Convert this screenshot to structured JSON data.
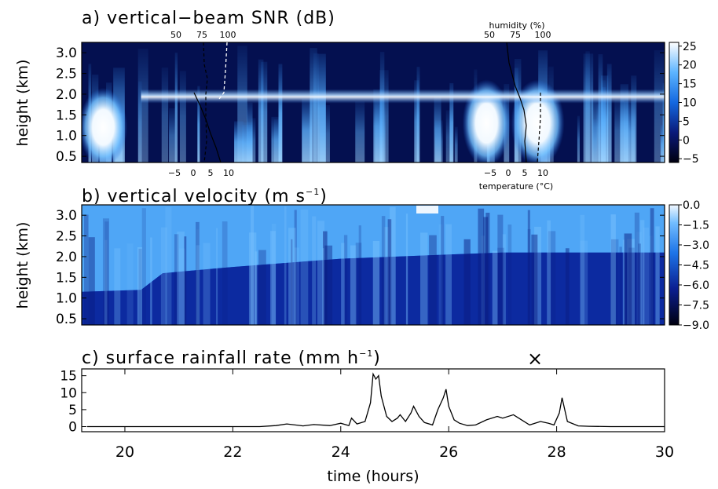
{
  "chart_data": [
    {
      "panel": "a",
      "type": "heatmap",
      "title": "a) vertical−beam SNR (dB)",
      "ylabel": "height (km)",
      "ylim": [
        0.35,
        3.25
      ],
      "yticks": [
        "0.5",
        "1.0",
        "1.5",
        "2.0",
        "2.5",
        "3.0"
      ],
      "xlim": [
        19.2,
        30.0
      ],
      "colorbar": {
        "min": -6,
        "max": 26,
        "ticks": [
          "25",
          "20",
          "15",
          "10",
          "5",
          "0",
          "−5"
        ],
        "tick_values": [
          25,
          20,
          15,
          10,
          5,
          0,
          -5
        ]
      },
      "bright_layers": [
        {
          "t0": 19.3,
          "t1": 19.9,
          "h0": 0.4,
          "h1": 2.0,
          "value": 25
        },
        {
          "t0": 26.4,
          "t1": 27.0,
          "h0": 0.4,
          "h1": 2.2,
          "value": 25
        },
        {
          "t0": 27.3,
          "t1": 28.0,
          "h0": 0.4,
          "h1": 2.2,
          "value": 25
        }
      ],
      "bright_band": {
        "height": 1.95,
        "t0": 20.3,
        "t1": 30.0,
        "value": 15
      },
      "soundings": [
        {
          "humidity_label": "",
          "humidity_ticks": [
            "50",
            "75",
            "100"
          ],
          "temperature_label": "",
          "temperature_ticks": [
            "−5",
            "0",
            "5",
            "10"
          ]
        },
        {
          "humidity_label": "humidity (%)",
          "humidity_ticks": [
            "50",
            "75",
            "100"
          ],
          "temperature_label": "temperature (°C)",
          "temperature_ticks": [
            "−5",
            "0",
            "5",
            "10"
          ]
        }
      ]
    },
    {
      "panel": "b",
      "type": "heatmap",
      "title": "b) vertical velocity (m s",
      "title_sup": "−1",
      "title_end": ")",
      "ylabel": "height (km)",
      "ylim": [
        0.35,
        3.25
      ],
      "yticks": [
        "0.5",
        "1.0",
        "1.5",
        "2.0",
        "2.5",
        "3.0"
      ],
      "xlim": [
        19.2,
        30.0
      ],
      "colorbar": {
        "min": -9.0,
        "max": 0.0,
        "ticks": [
          "0.0",
          "−1.5",
          "−3.0",
          "−4.5",
          "−6.0",
          "−7.5",
          "−9.0"
        ],
        "tick_values": [
          0.0,
          -1.5,
          -3.0,
          -4.5,
          -6.0,
          -7.5,
          -9.0
        ]
      },
      "melting_level_km": [
        {
          "t": 19.2,
          "h": 1.15
        },
        {
          "t": 20.3,
          "h": 1.2
        },
        {
          "t": 20.7,
          "h": 1.6
        },
        {
          "t": 22.0,
          "h": 1.75
        },
        {
          "t": 23.0,
          "h": 1.85
        },
        {
          "t": 24.0,
          "h": 1.95
        },
        {
          "t": 26.0,
          "h": 2.05
        },
        {
          "t": 27.0,
          "h": 2.1
        },
        {
          "t": 30.0,
          "h": 2.1
        }
      ],
      "above_value": -2.0,
      "below_value": -6.5
    },
    {
      "panel": "c",
      "type": "line",
      "title": "c) surface rainfall rate (mm h",
      "title_sup": "−1",
      "title_end": ")",
      "xlabel": "time (hours)",
      "xlim": [
        19.2,
        30.0
      ],
      "ylim": [
        -1.5,
        17
      ],
      "xticks": [
        "20",
        "22",
        "24",
        "26",
        "28",
        "30"
      ],
      "xtick_values": [
        20,
        22,
        24,
        26,
        28,
        30
      ],
      "yticks": [
        "0",
        "5",
        "10",
        "15"
      ],
      "ytick_values": [
        0,
        5,
        10,
        15
      ],
      "marker": {
        "symbol": "×",
        "x": 27.6
      },
      "series": [
        {
          "x": [
            19.3,
            20.5,
            22.5,
            22.8,
            23.0,
            23.3,
            23.5,
            23.8,
            24.0,
            24.15,
            24.2,
            24.3,
            24.45,
            24.55,
            24.6,
            24.65,
            24.7,
            24.75,
            24.85,
            24.95,
            25.05,
            25.1,
            25.2,
            25.3,
            25.35,
            25.45,
            25.55,
            25.7,
            25.8,
            25.9,
            25.95,
            26.0,
            26.1,
            26.2,
            26.35,
            26.5,
            26.7,
            26.9,
            27.0,
            27.2,
            27.35,
            27.5,
            27.7,
            27.85,
            27.95,
            28.05,
            28.1,
            28.2,
            28.4,
            28.6,
            29.0,
            30.0
          ],
          "y": [
            0.0,
            0.0,
            0.0,
            0.3,
            0.8,
            0.2,
            0.6,
            0.3,
            1.0,
            0.3,
            2.5,
            0.8,
            1.5,
            7.0,
            15.5,
            14.0,
            15.0,
            9.0,
            3.0,
            1.5,
            2.5,
            3.5,
            1.5,
            4.0,
            6.0,
            3.0,
            1.2,
            0.5,
            5.0,
            8.5,
            11.0,
            6.0,
            2.0,
            1.0,
            0.3,
            0.5,
            2.0,
            3.0,
            2.5,
            3.5,
            2.0,
            0.5,
            1.5,
            1.0,
            0.5,
            4.0,
            8.5,
            1.5,
            0.2,
            0.1,
            0.0,
            0.0
          ]
        }
      ]
    }
  ]
}
